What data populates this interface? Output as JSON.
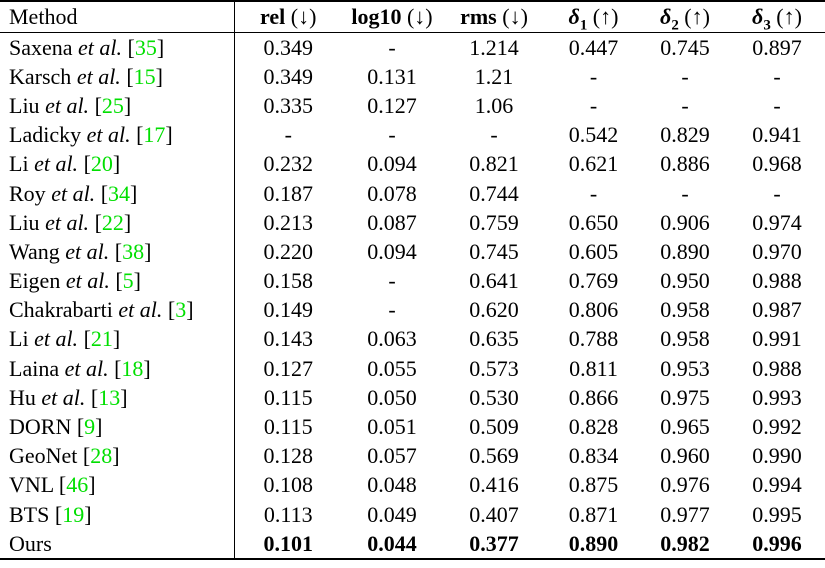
{
  "accent": {
    "citation_green": "#00df00",
    "rule_black": "#000000",
    "page_background": "#ffffff"
  },
  "table": {
    "method_header": "Method",
    "etal_text": "et al.",
    "metric_headers": [
      {
        "key": "rel",
        "label": "rel",
        "italic": false,
        "sub": "",
        "arrow": "↓"
      },
      {
        "key": "log10",
        "label": "log10",
        "italic": false,
        "sub": "",
        "arrow": "↓"
      },
      {
        "key": "rms",
        "label": "rms",
        "italic": false,
        "sub": "",
        "arrow": "↓"
      },
      {
        "key": "delta1",
        "label": "δ",
        "italic": true,
        "sub": "1",
        "arrow": "↑"
      },
      {
        "key": "delta2",
        "label": "δ",
        "italic": true,
        "sub": "2",
        "arrow": "↑"
      },
      {
        "key": "delta3",
        "label": "δ",
        "italic": true,
        "sub": "3",
        "arrow": "↑"
      }
    ],
    "rows": [
      {
        "name": "Saxena",
        "etal": true,
        "cite": "35",
        "bold": false,
        "values": [
          "0.349",
          "-",
          "1.214",
          "0.447",
          "0.745",
          "0.897"
        ]
      },
      {
        "name": "Karsch",
        "etal": true,
        "cite": "15",
        "bold": false,
        "values": [
          "0.349",
          "0.131",
          "1.21",
          "-",
          "-",
          "-"
        ]
      },
      {
        "name": "Liu",
        "etal": true,
        "cite": "25",
        "bold": false,
        "values": [
          "0.335",
          "0.127",
          "1.06",
          "-",
          "-",
          "-"
        ]
      },
      {
        "name": "Ladicky",
        "etal": true,
        "cite": "17",
        "bold": false,
        "values": [
          "-",
          "-",
          "-",
          "0.542",
          "0.829",
          "0.941"
        ]
      },
      {
        "name": "Li",
        "etal": true,
        "cite": "20",
        "bold": false,
        "values": [
          "0.232",
          "0.094",
          "0.821",
          "0.621",
          "0.886",
          "0.968"
        ]
      },
      {
        "name": "Roy",
        "etal": true,
        "cite": "34",
        "bold": false,
        "values": [
          "0.187",
          "0.078",
          "0.744",
          "-",
          "-",
          "-"
        ]
      },
      {
        "name": "Liu",
        "etal": true,
        "cite": "22",
        "bold": false,
        "values": [
          "0.213",
          "0.087",
          "0.759",
          "0.650",
          "0.906",
          "0.974"
        ]
      },
      {
        "name": "Wang",
        "etal": true,
        "cite": "38",
        "bold": false,
        "values": [
          "0.220",
          "0.094",
          "0.745",
          "0.605",
          "0.890",
          "0.970"
        ]
      },
      {
        "name": "Eigen",
        "etal": true,
        "cite": "5",
        "bold": false,
        "values": [
          "0.158",
          "-",
          "0.641",
          "0.769",
          "0.950",
          "0.988"
        ]
      },
      {
        "name": "Chakrabarti",
        "etal": true,
        "cite": "3",
        "bold": false,
        "values": [
          "0.149",
          "-",
          "0.620",
          "0.806",
          "0.958",
          "0.987"
        ]
      },
      {
        "name": "Li",
        "etal": true,
        "cite": "21",
        "bold": false,
        "values": [
          "0.143",
          "0.063",
          "0.635",
          "0.788",
          "0.958",
          "0.991"
        ]
      },
      {
        "name": "Laina",
        "etal": true,
        "cite": "18",
        "bold": false,
        "values": [
          "0.127",
          "0.055",
          "0.573",
          "0.811",
          "0.953",
          "0.988"
        ]
      },
      {
        "name": "Hu",
        "etal": true,
        "cite": "13",
        "bold": false,
        "values": [
          "0.115",
          "0.050",
          "0.530",
          "0.866",
          "0.975",
          "0.993"
        ]
      },
      {
        "name": "DORN",
        "etal": false,
        "cite": "9",
        "bold": false,
        "values": [
          "0.115",
          "0.051",
          "0.509",
          "0.828",
          "0.965",
          "0.992"
        ]
      },
      {
        "name": "GeoNet",
        "etal": false,
        "cite": "28",
        "bold": false,
        "values": [
          "0.128",
          "0.057",
          "0.569",
          "0.834",
          "0.960",
          "0.990"
        ]
      },
      {
        "name": "VNL",
        "etal": false,
        "cite": "46",
        "bold": false,
        "values": [
          "0.108",
          "0.048",
          "0.416",
          "0.875",
          "0.976",
          "0.994"
        ]
      },
      {
        "name": "BTS",
        "etal": false,
        "cite": "19",
        "bold": false,
        "values": [
          "0.113",
          "0.049",
          "0.407",
          "0.871",
          "0.977",
          "0.995"
        ]
      },
      {
        "name": "Ours",
        "etal": false,
        "cite": "",
        "bold": true,
        "values": [
          "0.101",
          "0.044",
          "0.377",
          "0.890",
          "0.982",
          "0.996"
        ]
      }
    ]
  }
}
